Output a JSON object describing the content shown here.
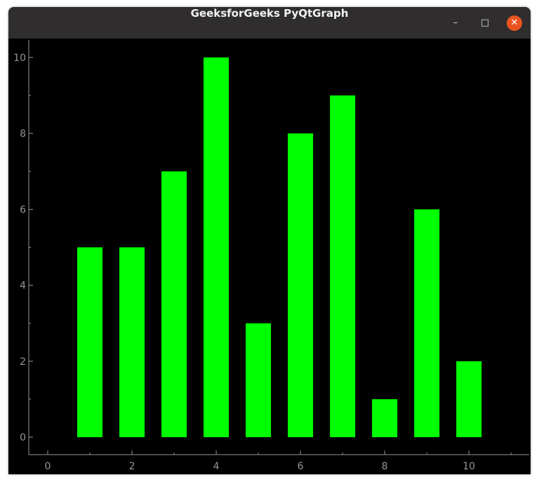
{
  "window": {
    "title": "GeeksforGeeks PyQtGraph",
    "minimize_icon": "minimize-icon",
    "maximize_icon": "maximize-icon",
    "close_icon": "close-icon"
  },
  "chart_data": {
    "type": "bar",
    "x": [
      1,
      2,
      3,
      4,
      5,
      6,
      7,
      8,
      9,
      10
    ],
    "values": [
      5,
      5,
      7,
      10,
      3,
      8,
      9,
      1,
      6,
      2
    ],
    "bar_width": 0.6,
    "bar_color": "#00ff00",
    "background": "#000000",
    "xlim": [
      -0.45,
      11.43
    ],
    "ylim": [
      -0.46,
      10.46
    ],
    "xticks": [
      0,
      2,
      4,
      6,
      8,
      10
    ],
    "yticks": [
      0,
      2,
      4,
      6,
      8,
      10
    ],
    "grid": false,
    "title": "",
    "xlabel": "",
    "ylabel": ""
  }
}
